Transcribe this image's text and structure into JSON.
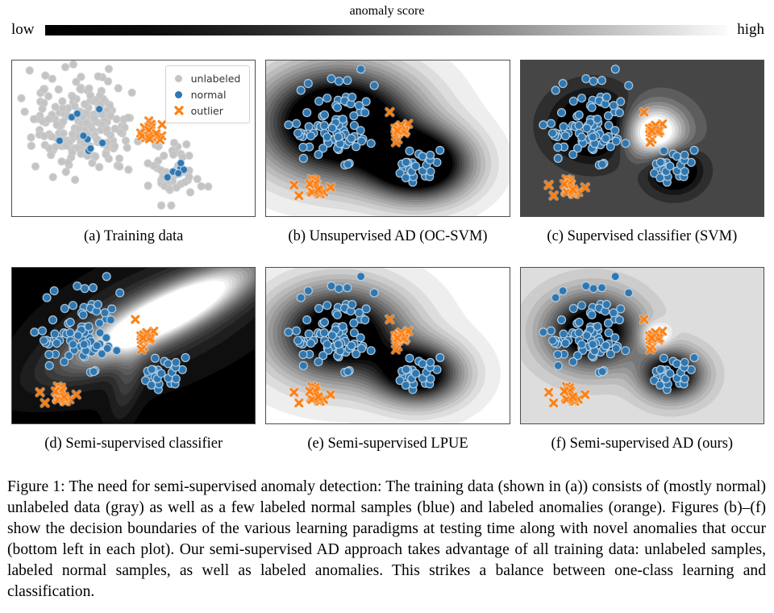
{
  "colorbar": {
    "title": "anomaly score",
    "left_label": "low",
    "right_label": "high",
    "start_color": "#000000",
    "end_color": "#fbfbfb"
  },
  "colors": {
    "unlabeled": "#c4c4c4",
    "unlabeled_edge": "#cfcfcf",
    "normal": "#2f77b0",
    "normal_edge": "#bdd4e6",
    "outlier": "#ff7f0e",
    "panel_border": "#4d4d4d"
  },
  "legend": {
    "items": [
      {
        "label": "unlabeled",
        "marker": "circle",
        "color": "#c4c4c4"
      },
      {
        "label": "normal",
        "marker": "circle",
        "color": "#2f77b0"
      },
      {
        "label": "outlier",
        "marker": "x",
        "color": "#ff7f0e"
      }
    ]
  },
  "figure_caption": "Figure 1: The need for semi-supervised anomaly detection: The training data (shown in (a)) consists of (mostly normal) unlabeled data (gray) as well as a few labeled normal samples (blue) and labeled anomalies (orange). Figures (b)–(f) show the decision boundaries of the various learning paradigms at testing time along with novel anomalies that occur (bottom left in each plot). Our semi-supervised AD approach takes advantage of all training data: unlabeled samples, labeled normal samples, as well as labeled anomalies. This strikes a balance between one-class learning and classification.",
  "chart_data": {
    "type": "scatter",
    "note": "2D toy data; grayscale contour background encodes anomaly score (black = low, white = high); no axes or ticks shown",
    "panels": [
      {
        "id": "a",
        "caption": "(a) Training data",
        "groups": "training",
        "has_legend": true,
        "background": {
          "base": 1.0,
          "levels": 1,
          "components": []
        }
      },
      {
        "id": "b",
        "caption": "(b) Unsupervised AD (OC-SVM)",
        "groups": "test",
        "background": {
          "base": 0.97,
          "levels": 16,
          "components": [
            {
              "cx": 0.3,
              "cy": 0.4,
              "sx": 0.21,
              "sy": 0.23,
              "rot": 0,
              "amp": -1.5
            },
            {
              "cx": 0.63,
              "cy": 0.67,
              "sx": 0.14,
              "sy": 0.15,
              "rot": 0,
              "amp": -1.35
            }
          ]
        }
      },
      {
        "id": "c",
        "caption": "(c) Supervised classifier (SVM)",
        "groups": "test",
        "background": {
          "base": 0.3,
          "levels": 12,
          "components": [
            {
              "cx": 0.3,
              "cy": 0.42,
              "sx": 0.115,
              "sy": 0.15,
              "rot": 0,
              "amp": -0.52
            },
            {
              "cx": 0.63,
              "cy": 0.7,
              "sx": 0.075,
              "sy": 0.1,
              "rot": 0,
              "amp": -0.52
            },
            {
              "cx": 0.55,
              "cy": 0.46,
              "sx": 0.085,
              "sy": 0.115,
              "rot": 0,
              "amp": 0.95
            }
          ]
        }
      },
      {
        "id": "d",
        "caption": "(d) Semi-supervised classifier",
        "groups": "test",
        "background": {
          "base": 0.03,
          "levels": 18,
          "components": [
            {
              "cx": 0.64,
              "cy": 0.29,
              "sx": 0.3,
              "sy": 0.085,
              "rot": -40,
              "amp": 1.3
            },
            {
              "cx": 0.6,
              "cy": 0.33,
              "sx": 0.36,
              "sy": 0.2,
              "rot": -40,
              "amp": 0.22
            },
            {
              "cx": 0.48,
              "cy": 0.7,
              "sx": 0.04,
              "sy": 0.2,
              "rot": 8,
              "amp": 0.18
            }
          ]
        }
      },
      {
        "id": "e",
        "caption": "(e) Semi-supervised LPUE",
        "groups": "test",
        "background": {
          "base": 0.96,
          "levels": 16,
          "components": [
            {
              "cx": 0.3,
              "cy": 0.42,
              "sx": 0.18,
              "sy": 0.2,
              "rot": 0,
              "amp": -1.25
            },
            {
              "cx": 0.625,
              "cy": 0.68,
              "sx": 0.12,
              "sy": 0.13,
              "rot": 0,
              "amp": -1.15
            }
          ]
        }
      },
      {
        "id": "f",
        "caption": "(f) Semi-supervised AD (ours)",
        "groups": "test",
        "background": {
          "base": 0.85,
          "levels": 16,
          "components": [
            {
              "cx": 0.295,
              "cy": 0.41,
              "sx": 0.125,
              "sy": 0.155,
              "rot": 0,
              "amp": -1.15
            },
            {
              "cx": 0.62,
              "cy": 0.685,
              "sx": 0.085,
              "sy": 0.105,
              "rot": 0,
              "amp": -1.05
            },
            {
              "cx": 0.555,
              "cy": 0.44,
              "sx": 0.042,
              "sy": 0.058,
              "rot": 0,
              "amp": 0.42
            }
          ]
        }
      }
    ],
    "group_sets": {
      "training": [
        {
          "name": "unlabeled cluster 1",
          "marker": "circle",
          "color": "unlabeled",
          "n": 200,
          "cx": 0.295,
          "cy": 0.41,
          "sx": 0.105,
          "sy": 0.155,
          "seed": 101,
          "r": 4.6
        },
        {
          "name": "unlabeled cluster 2",
          "marker": "circle",
          "color": "unlabeled",
          "n": 55,
          "cx": 0.66,
          "cy": 0.71,
          "sx": 0.055,
          "sy": 0.082,
          "seed": 102,
          "r": 4.6
        },
        {
          "name": "labeled normal cluster 1",
          "marker": "circle",
          "color": "normal",
          "n": 9,
          "cx": 0.29,
          "cy": 0.41,
          "sx": 0.055,
          "sy": 0.08,
          "seed": 103,
          "r": 4.6
        },
        {
          "name": "labeled normal cluster 2",
          "marker": "circle",
          "color": "normal",
          "n": 6,
          "cx": 0.66,
          "cy": 0.71,
          "sx": 0.028,
          "sy": 0.042,
          "seed": 104,
          "r": 4.6
        },
        {
          "name": "labeled outliers",
          "marker": "x",
          "color": "outlier",
          "n": 20,
          "cx": 0.565,
          "cy": 0.475,
          "sx": 0.027,
          "sy": 0.042,
          "seed": 105,
          "r": 4.0
        }
      ],
      "test": [
        {
          "name": "normal cluster 1",
          "marker": "circle",
          "color": "normal",
          "n": 85,
          "cx": 0.295,
          "cy": 0.42,
          "sx": 0.092,
          "sy": 0.135,
          "seed": 111,
          "r": 5.0
        },
        {
          "name": "normal cluster 2",
          "marker": "circle",
          "color": "normal",
          "n": 27,
          "cx": 0.625,
          "cy": 0.69,
          "sx": 0.05,
          "sy": 0.072,
          "seed": 112,
          "r": 5.0
        },
        {
          "name": "labeled outliers",
          "marker": "x",
          "color": "outlier",
          "n": 18,
          "cx": 0.555,
          "cy": 0.455,
          "sx": 0.021,
          "sy": 0.047,
          "seed": 113,
          "r": 4.0
        },
        {
          "name": "novel anomalies blob",
          "marker": "x",
          "color": "outlier",
          "n": 13,
          "cx": 0.205,
          "cy": 0.825,
          "sx": 0.017,
          "sy": 0.027,
          "seed": 114,
          "r": 4.0
        },
        {
          "name": "novel anomalies scattered",
          "marker": "x",
          "color": "outlier",
          "points": [
            [
              0.115,
              0.8
            ],
            [
              0.135,
              0.868
            ],
            [
              0.265,
              0.815
            ]
          ],
          "r": 4.0
        }
      ]
    }
  }
}
